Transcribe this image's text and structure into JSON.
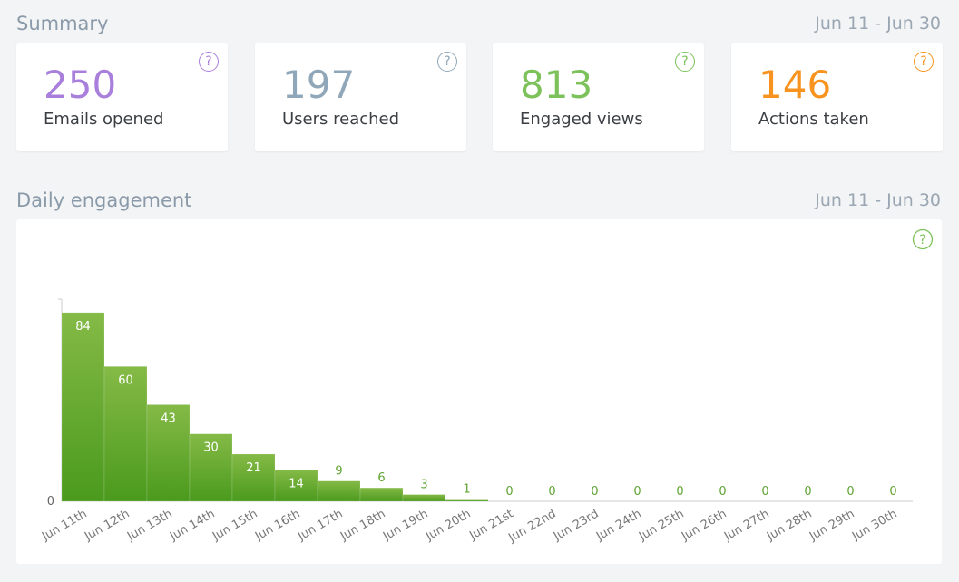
{
  "summary": {
    "title": "Summary",
    "date_range": "Jun 11 - Jun 30",
    "cards": [
      {
        "value": "250",
        "label": "Emails opened",
        "color": "#a97fdc",
        "icon": "?"
      },
      {
        "value": "197",
        "label": "Users reached",
        "color": "#90a7b9",
        "icon": "?"
      },
      {
        "value": "813",
        "label": "Engaged views",
        "color": "#7cc15a",
        "icon": "?"
      },
      {
        "value": "146",
        "label": "Actions taken",
        "color": "#f7931e",
        "icon": "?"
      }
    ]
  },
  "chart_data": {
    "type": "bar",
    "title": "Daily engagement",
    "subtitle": "Jun 11 - Jun 30",
    "icon": "?",
    "categories": [
      "Jun 11th",
      "Jun 12th",
      "Jun 13th",
      "Jun 14th",
      "Jun 15th",
      "Jun 16th",
      "Jun 17th",
      "Jun 18th",
      "Jun 19th",
      "Jun 20th",
      "Jun 21st",
      "Jun 22nd",
      "Jun 23rd",
      "Jun 24th",
      "Jun 25th",
      "Jun 26th",
      "Jun 27th",
      "Jun 28th",
      "Jun 29th",
      "Jun 30th"
    ],
    "values": [
      84,
      60,
      43,
      30,
      21,
      14,
      9,
      6,
      3,
      1,
      0,
      0,
      0,
      0,
      0,
      0,
      0,
      0,
      0,
      0
    ],
    "gradient": [
      "#85ba47",
      "#4a9a1d"
    ],
    "label_color": "#5fa331",
    "ylim": [
      0,
      90
    ],
    "yticks": [
      0
    ]
  }
}
